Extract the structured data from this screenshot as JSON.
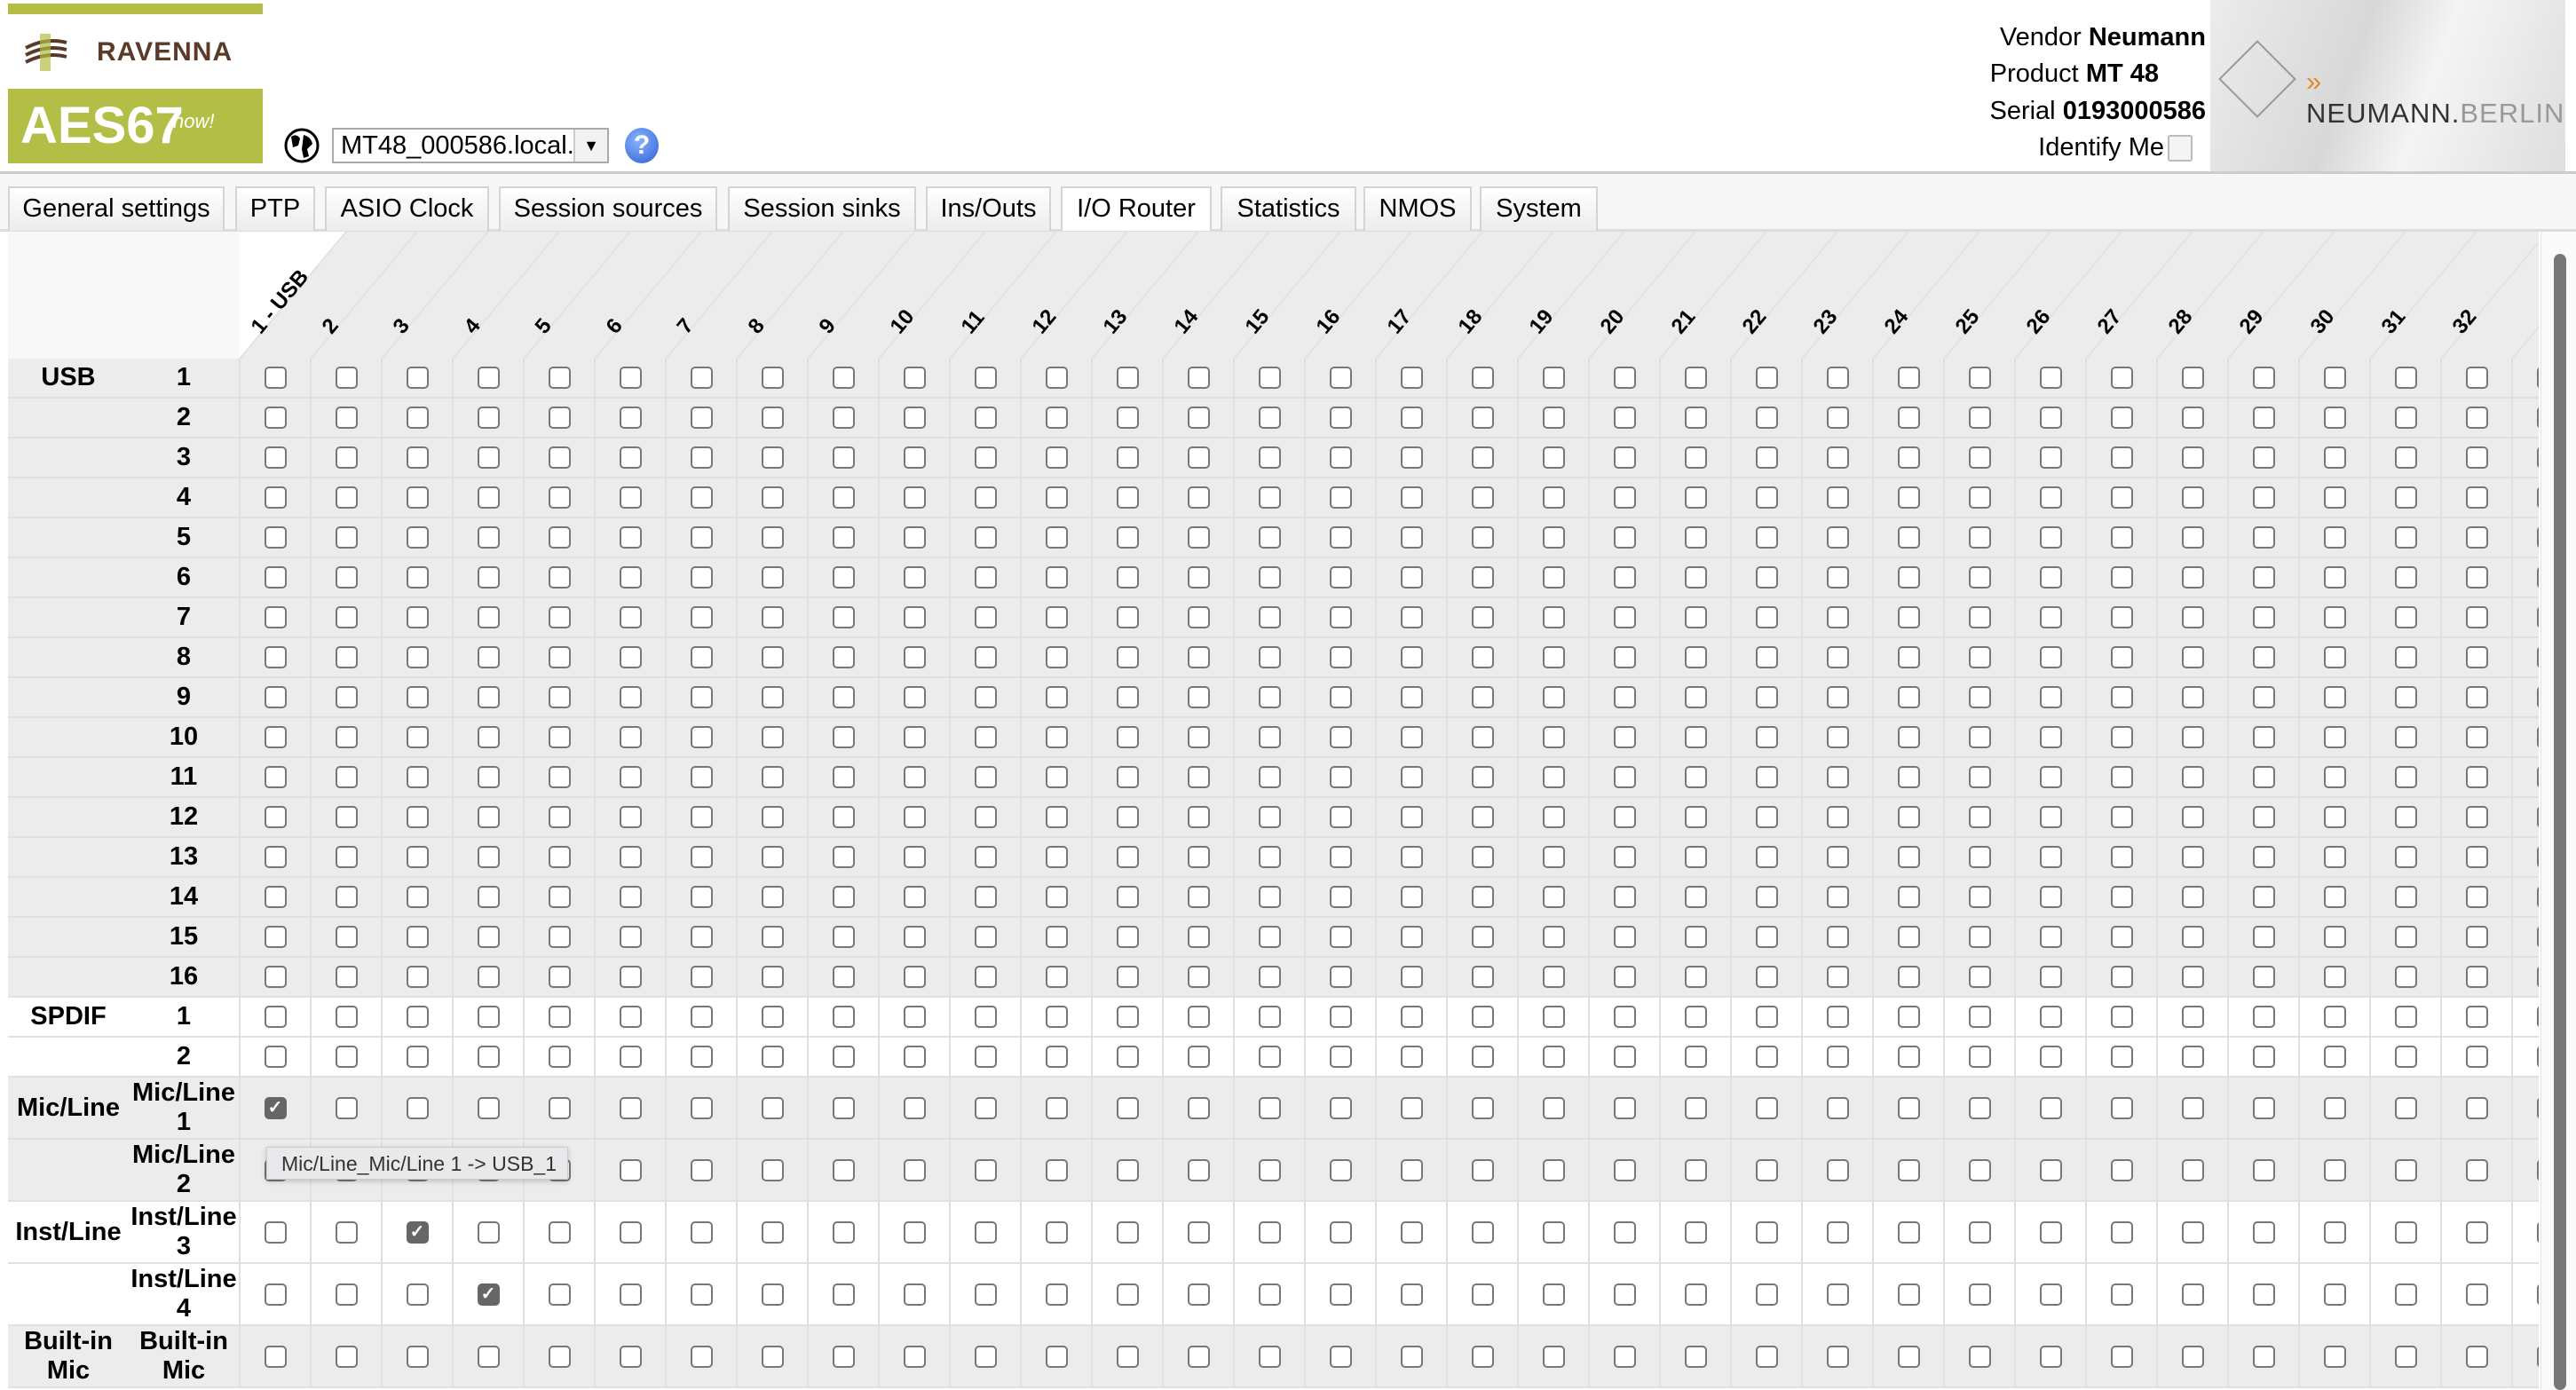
{
  "logo": {
    "brand": "RAVENNA",
    "product": "AES67",
    "tagline": "now!"
  },
  "device_select": {
    "value": "MT48_000586.local.",
    "icon": "globe-icon",
    "help_icon": "question-icon"
  },
  "device_info": {
    "vendor_label": "Vendor",
    "vendor": "Neumann",
    "product_label": "Product",
    "product": "MT 48",
    "serial_label": "Serial",
    "serial": "0193000586",
    "identify_label": "Identify Me",
    "identify_checked": false
  },
  "banner": {
    "arrows": "»",
    "name": "NEUMANN.",
    "city": "BERLIN"
  },
  "tabs": [
    {
      "label": "General settings"
    },
    {
      "label": "PTP"
    },
    {
      "label": "ASIO Clock"
    },
    {
      "label": "Session sources"
    },
    {
      "label": "Session sinks"
    },
    {
      "label": "Ins/Outs"
    },
    {
      "label": "I/O Router",
      "active": true
    },
    {
      "label": "Statistics"
    },
    {
      "label": "NMOS"
    },
    {
      "label": "System"
    }
  ],
  "router": {
    "columns": [
      "1 - USB",
      "2",
      "3",
      "4",
      "5",
      "6",
      "7",
      "8",
      "9",
      "10",
      "11",
      "12",
      "13",
      "14",
      "15",
      "16",
      "17",
      "18",
      "19",
      "20",
      "21",
      "22",
      "23",
      "24",
      "25",
      "26",
      "27",
      "28",
      "29",
      "30",
      "31",
      "32",
      ""
    ],
    "rows": [
      {
        "group": "USB",
        "label": "1",
        "checked": []
      },
      {
        "group": "",
        "label": "2",
        "checked": []
      },
      {
        "group": "",
        "label": "3",
        "checked": []
      },
      {
        "group": "",
        "label": "4",
        "checked": []
      },
      {
        "group": "",
        "label": "5",
        "checked": []
      },
      {
        "group": "",
        "label": "6",
        "checked": []
      },
      {
        "group": "",
        "label": "7",
        "checked": []
      },
      {
        "group": "",
        "label": "8",
        "checked": []
      },
      {
        "group": "",
        "label": "9",
        "checked": []
      },
      {
        "group": "",
        "label": "10",
        "checked": []
      },
      {
        "group": "",
        "label": "11",
        "checked": []
      },
      {
        "group": "",
        "label": "12",
        "checked": []
      },
      {
        "group": "",
        "label": "13",
        "checked": []
      },
      {
        "group": "",
        "label": "14",
        "checked": []
      },
      {
        "group": "",
        "label": "15",
        "checked": []
      },
      {
        "group": "",
        "label": "16",
        "checked": []
      },
      {
        "group": "SPDIF",
        "label": "1",
        "checked": []
      },
      {
        "group": "",
        "label": "2",
        "checked": []
      },
      {
        "group": "Mic/Line",
        "label": "Mic/Line 1",
        "checked": [
          1
        ]
      },
      {
        "group": "",
        "label": "Mic/Line 2",
        "checked": []
      },
      {
        "group": "Inst/Line",
        "label": "Inst/Line 3",
        "checked": [
          3
        ]
      },
      {
        "group": "",
        "label": "Inst/Line 4",
        "checked": [
          4
        ]
      },
      {
        "group": "Built-in Mic",
        "label": "Built-in Mic",
        "checked": []
      }
    ],
    "tooltip": "Mic/Line_Mic/Line 1 -> USB_1"
  },
  "colors": {
    "accent_logo": "#b2be45",
    "band_gray": "#ececec",
    "checkbox_checked": "#666666"
  }
}
